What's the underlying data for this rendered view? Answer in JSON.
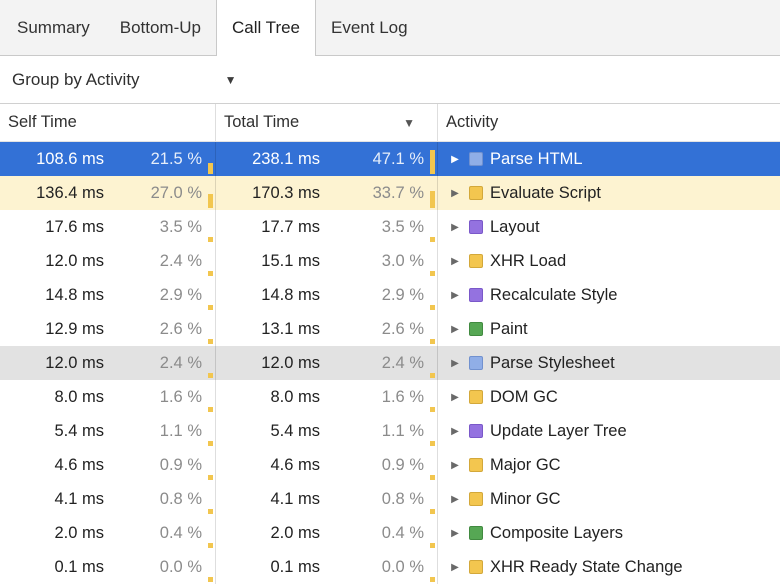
{
  "tabs": [
    {
      "label": "Summary",
      "active": false
    },
    {
      "label": "Bottom-Up",
      "active": false
    },
    {
      "label": "Call Tree",
      "active": true
    },
    {
      "label": "Event Log",
      "active": false
    }
  ],
  "toolbar": {
    "group_by_label": "Group by Activity"
  },
  "icons": {
    "dropdown": "▼",
    "sort_descending": "▼",
    "disclosure": "▶"
  },
  "table": {
    "columns": [
      {
        "label": "Self Time"
      },
      {
        "label": "Total Time",
        "sorted": "descending"
      },
      {
        "label": "Activity"
      }
    ],
    "rows": [
      {
        "self_ms": "108.6 ms",
        "self_pct": "21.5 %",
        "self_pct_value": 21.5,
        "total_ms": "238.1 ms",
        "total_pct": "47.1 %",
        "total_pct_value": 47.1,
        "activity": "Parse HTML",
        "category": "loading",
        "state": "selected"
      },
      {
        "self_ms": "136.4 ms",
        "self_pct": "27.0 %",
        "self_pct_value": 27.0,
        "total_ms": "170.3 ms",
        "total_pct": "33.7 %",
        "total_pct_value": 33.7,
        "activity": "Evaluate Script",
        "category": "scripting",
        "state": "highlight"
      },
      {
        "self_ms": "17.6 ms",
        "self_pct": "3.5 %",
        "self_pct_value": 3.5,
        "total_ms": "17.7 ms",
        "total_pct": "3.5 %",
        "total_pct_value": 3.5,
        "activity": "Layout",
        "category": "rendering",
        "state": ""
      },
      {
        "self_ms": "12.0 ms",
        "self_pct": "2.4 %",
        "self_pct_value": 2.4,
        "total_ms": "15.1 ms",
        "total_pct": "3.0 %",
        "total_pct_value": 3.0,
        "activity": "XHR Load",
        "category": "scripting",
        "state": ""
      },
      {
        "self_ms": "14.8 ms",
        "self_pct": "2.9 %",
        "self_pct_value": 2.9,
        "total_ms": "14.8 ms",
        "total_pct": "2.9 %",
        "total_pct_value": 2.9,
        "activity": "Recalculate Style",
        "category": "rendering",
        "state": ""
      },
      {
        "self_ms": "12.9 ms",
        "self_pct": "2.6 %",
        "self_pct_value": 2.6,
        "total_ms": "13.1 ms",
        "total_pct": "2.6 %",
        "total_pct_value": 2.6,
        "activity": "Paint",
        "category": "painting",
        "state": ""
      },
      {
        "self_ms": "12.0 ms",
        "self_pct": "2.4 %",
        "self_pct_value": 2.4,
        "total_ms": "12.0 ms",
        "total_pct": "2.4 %",
        "total_pct_value": 2.4,
        "activity": "Parse Stylesheet",
        "category": "loading",
        "state": "hover"
      },
      {
        "self_ms": "8.0 ms",
        "self_pct": "1.6 %",
        "self_pct_value": 1.6,
        "total_ms": "8.0 ms",
        "total_pct": "1.6 %",
        "total_pct_value": 1.6,
        "activity": "DOM GC",
        "category": "scripting",
        "state": ""
      },
      {
        "self_ms": "5.4 ms",
        "self_pct": "1.1 %",
        "self_pct_value": 1.1,
        "total_ms": "5.4 ms",
        "total_pct": "1.1 %",
        "total_pct_value": 1.1,
        "activity": "Update Layer Tree",
        "category": "rendering",
        "state": ""
      },
      {
        "self_ms": "4.6 ms",
        "self_pct": "0.9 %",
        "self_pct_value": 0.9,
        "total_ms": "4.6 ms",
        "total_pct": "0.9 %",
        "total_pct_value": 0.9,
        "activity": "Major GC",
        "category": "scripting",
        "state": ""
      },
      {
        "self_ms": "4.1 ms",
        "self_pct": "0.8 %",
        "self_pct_value": 0.8,
        "total_ms": "4.1 ms",
        "total_pct": "0.8 %",
        "total_pct_value": 0.8,
        "activity": "Minor GC",
        "category": "scripting",
        "state": ""
      },
      {
        "self_ms": "2.0 ms",
        "self_pct": "0.4 %",
        "self_pct_value": 0.4,
        "total_ms": "2.0 ms",
        "total_pct": "0.4 %",
        "total_pct_value": 0.4,
        "activity": "Composite Layers",
        "category": "painting",
        "state": ""
      },
      {
        "self_ms": "0.1 ms",
        "self_pct": "0.0 %",
        "self_pct_value": 0.0,
        "total_ms": "0.1 ms",
        "total_pct": "0.0 %",
        "total_pct_value": 0.0,
        "activity": "XHR Ready State Change",
        "category": "scripting",
        "state": ""
      }
    ]
  },
  "colors": {
    "loading": "#90aee7",
    "loading_border": "#7191cf",
    "scripting": "#f3c64f",
    "scripting_border": "#d3a83a",
    "rendering": "#9472e0",
    "rendering_border": "#7a58c9",
    "painting": "#56a754",
    "painting_border": "#418a40",
    "selected_row_bg": "#3371d6",
    "hover_row_bg": "#e2e2e2",
    "highlight_row_bg": "#fdf3d1",
    "percent_bar": "#f2c64f"
  }
}
